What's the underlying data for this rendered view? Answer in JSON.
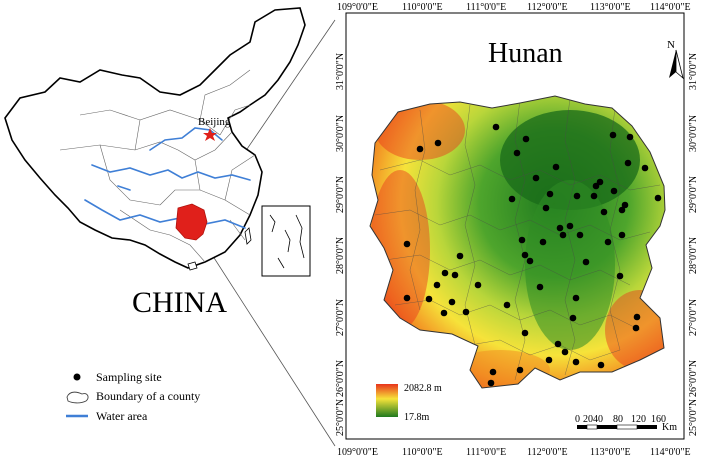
{
  "inset": {
    "country_label": "CHINA",
    "capital_label": "Beijing"
  },
  "legend": {
    "items": [
      {
        "symbol": "dot",
        "label": "Sampling site"
      },
      {
        "symbol": "county-outline",
        "label": "Boundary of a county"
      },
      {
        "symbol": "blue-line",
        "label": "Water area"
      }
    ]
  },
  "main_map": {
    "title": "Hunan",
    "north_label": "N",
    "top_ticks": [
      "109°0'0\"E",
      "110°0'0\"E",
      "111°0'0\"E",
      "112°0'0\"E",
      "113°0'0\"E",
      "114°0'0\"E"
    ],
    "bottom_ticks": [
      "109°0'0\"E",
      "110°0'0\"E",
      "111°0'0\"E",
      "112°0'0\"E",
      "113°0'0\"E",
      "114°0'0\"E"
    ],
    "left_ticks": [
      "31°0'0\"N",
      "30°0'0\"N",
      "29°0'0\"N",
      "28°0'0\"N",
      "27°0'0\"N",
      "26°0'0\"N",
      "25°0'0\"N"
    ],
    "right_ticks": [
      "31°0'0\"N",
      "30°0'0\"N",
      "29°0'0\"N",
      "28°0'0\"N",
      "27°0'0\"N",
      "26°0'0\"N",
      "25°0'0\"N"
    ],
    "elevation_legend": {
      "max": "2082.8 m",
      "min": "17.8m"
    },
    "scale_bar": {
      "labels": [
        "0",
        "20",
        "40",
        "80",
        "120",
        "160"
      ],
      "unit": "Km"
    }
  },
  "colors": {
    "highland": "#e8341c",
    "midland": "#f6e33a",
    "lowland": "#1f7a1f",
    "water": "#3f7fd6",
    "hunan_inset": "#e0201b"
  }
}
